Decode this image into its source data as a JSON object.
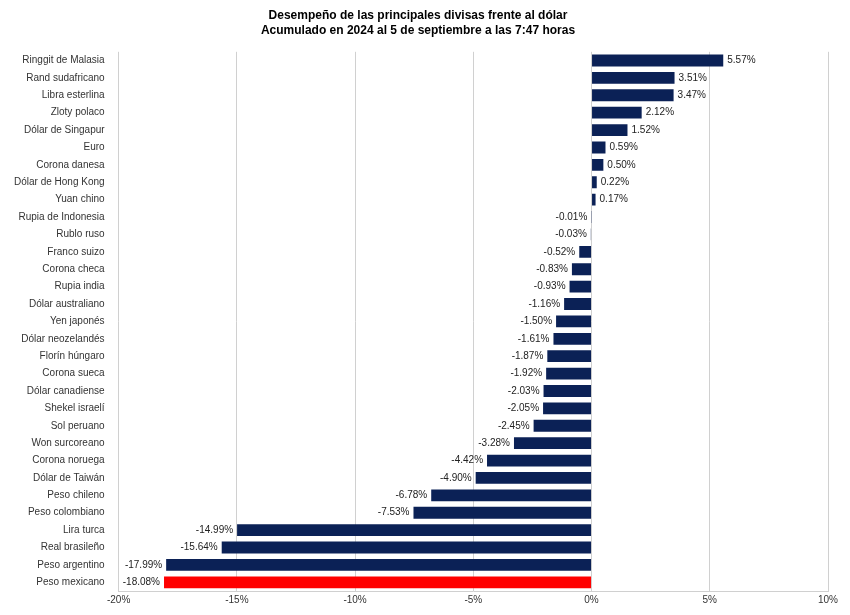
{
  "chart_data": {
    "type": "bar",
    "orientation": "horizontal",
    "title": "Desempeño de las principales divisas frente al dólar",
    "subtitle": "Acumulado en 2024 al 5 de septiembre a las 7:47 horas",
    "categories": [
      "Ringgit de Malasia",
      "Rand sudafricano",
      "Libra esterlina",
      "Zloty polaco",
      "Dólar de Singapur",
      "Euro",
      "Corona danesa",
      "Dólar de Hong Kong",
      "Yuan chino",
      "Rupia de Indonesia",
      "Rublo ruso",
      "Franco suizo",
      "Corona checa",
      "Rupia india",
      "Dólar australiano",
      "Yen japonés",
      "Dólar neozelandés",
      "Florín húngaro",
      "Corona sueca",
      "Dólar canadiense",
      "Shekel israelí",
      "Sol peruano",
      "Won surcoreano",
      "Corona noruega",
      "Dólar de Taiwán",
      "Peso chileno",
      "Peso colombiano",
      "Lira turca",
      "Real brasileño",
      "Peso argentino",
      "Peso mexicano"
    ],
    "values": [
      5.57,
      3.51,
      3.47,
      2.12,
      1.52,
      0.59,
      0.5,
      0.22,
      0.17,
      -0.01,
      -0.03,
      -0.52,
      -0.83,
      -0.93,
      -1.16,
      -1.5,
      -1.61,
      -1.87,
      -1.92,
      -2.03,
      -2.05,
      -2.45,
      -3.28,
      -4.42,
      -4.9,
      -6.78,
      -7.53,
      -14.99,
      -15.64,
      -17.99,
      -18.08
    ],
    "value_labels": [
      "5.57%",
      "3.51%",
      "3.47%",
      "2.12%",
      "1.52%",
      "0.59%",
      "0.50%",
      "0.22%",
      "0.17%",
      "-0.01%",
      "-0.03%",
      "-0.52%",
      "-0.83%",
      "-0.93%",
      "-1.16%",
      "-1.50%",
      "-1.61%",
      "-1.87%",
      "-1.92%",
      "-2.03%",
      "-2.05%",
      "-2.45%",
      "-3.28%",
      "-4.42%",
      "-4.90%",
      "-6.78%",
      "-7.53%",
      "-14.99%",
      "-15.64%",
      "-17.99%",
      "-18.08%"
    ],
    "colors": [
      "#0b2156",
      "#0b2156",
      "#0b2156",
      "#0b2156",
      "#0b2156",
      "#0b2156",
      "#0b2156",
      "#0b2156",
      "#0b2156",
      "#0b2156",
      "#0b2156",
      "#0b2156",
      "#0b2156",
      "#0b2156",
      "#0b2156",
      "#0b2156",
      "#0b2156",
      "#0b2156",
      "#0b2156",
      "#0b2156",
      "#0b2156",
      "#0b2156",
      "#0b2156",
      "#0b2156",
      "#0b2156",
      "#0b2156",
      "#0b2156",
      "#0b2156",
      "#0b2156",
      "#0b2156",
      "#ff0000"
    ],
    "xlim": [
      -20,
      10
    ],
    "xticks": [
      {
        "value": -20,
        "label": "-20%"
      },
      {
        "value": -15,
        "label": "-15%"
      },
      {
        "value": -10,
        "label": "-10%"
      },
      {
        "value": -5,
        "label": "-5%"
      },
      {
        "value": 0,
        "label": "0%"
      },
      {
        "value": 5,
        "label": "5%"
      },
      {
        "value": 10,
        "label": "10%"
      }
    ],
    "grid": true,
    "data_labels": true
  }
}
